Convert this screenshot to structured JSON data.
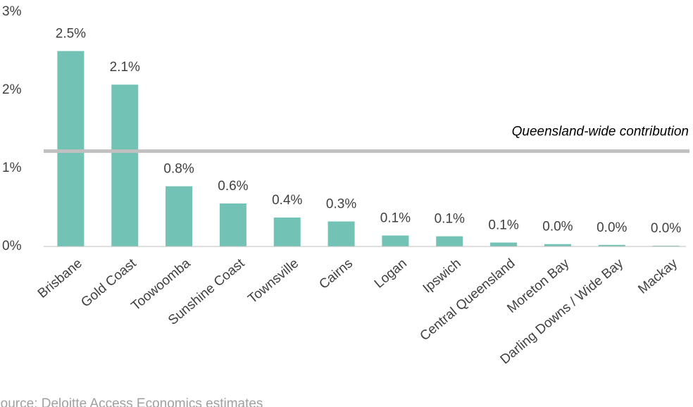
{
  "chart_data": {
    "type": "bar",
    "categories": [
      "Brisbane",
      "Gold Coast",
      "Toowoomba",
      "Sunshine Coast",
      "Townsville",
      "Cairns",
      "Logan",
      "Ipswich",
      "Central Queensland",
      "Moreton Bay",
      "Darling Downs / Wide Bay",
      "Mackay"
    ],
    "values": [
      2.5,
      2.07,
      0.77,
      0.55,
      0.37,
      0.32,
      0.14,
      0.13,
      0.05,
      0.03,
      0.02,
      0.01
    ],
    "value_labels": [
      "2.5%",
      "2.1%",
      "0.8%",
      "0.6%",
      "0.4%",
      "0.3%",
      "0.1%",
      "0.1%",
      "0.1%",
      "0.0%",
      "0.0%",
      "0.0%"
    ],
    "color": "#72c3b5",
    "ylim": [
      0,
      3
    ],
    "yticks": [
      {
        "value": 0,
        "label": "0%"
      },
      {
        "value": 1,
        "label": "1%"
      },
      {
        "value": 2,
        "label": "2%"
      },
      {
        "value": 3,
        "label": "3%"
      }
    ],
    "grid": false,
    "reference_line": {
      "value": 1.22,
      "label": "Queensland-wide contribution",
      "color": "#c0c0c0"
    },
    "source": "Source: Deloitte Access Economics estimates"
  }
}
